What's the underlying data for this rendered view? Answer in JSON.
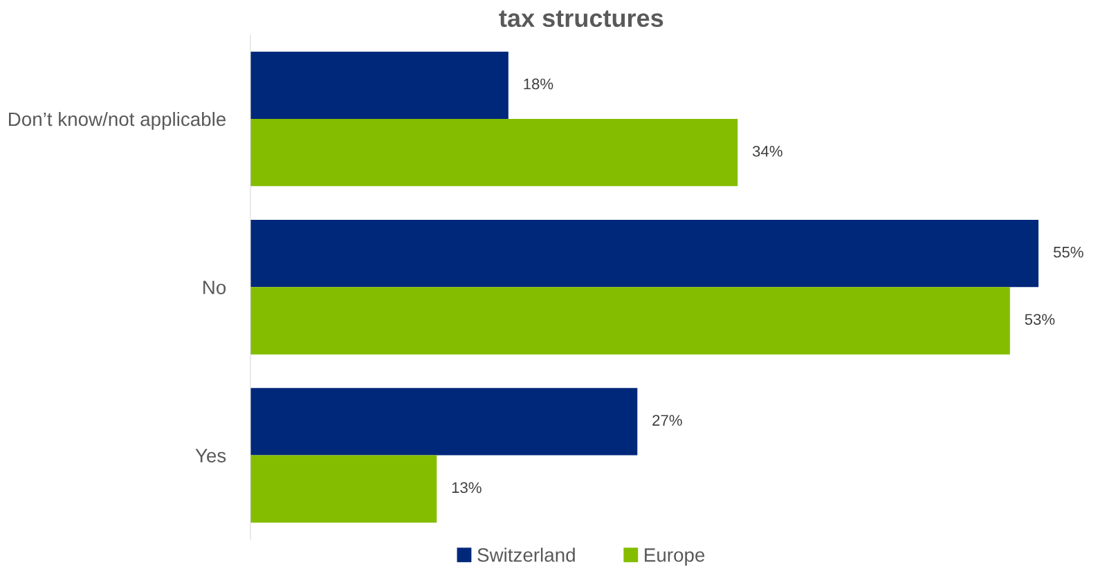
{
  "chart_data": {
    "type": "bar",
    "orientation": "horizontal",
    "title": "tax structures",
    "categories": [
      "Don’t know/not applicable",
      "No",
      "Yes"
    ],
    "series": [
      {
        "name": "Switzerland",
        "color": "#00287a",
        "values": [
          18,
          55,
          27
        ],
        "value_labels": [
          "18%",
          "55%",
          "27%"
        ]
      },
      {
        "name": "Europe",
        "color": "#84bd00",
        "values": [
          34,
          53,
          13
        ],
        "value_labels": [
          "34%",
          "53%",
          "13%"
        ]
      }
    ],
    "legend": "bottom",
    "grid": false
  }
}
